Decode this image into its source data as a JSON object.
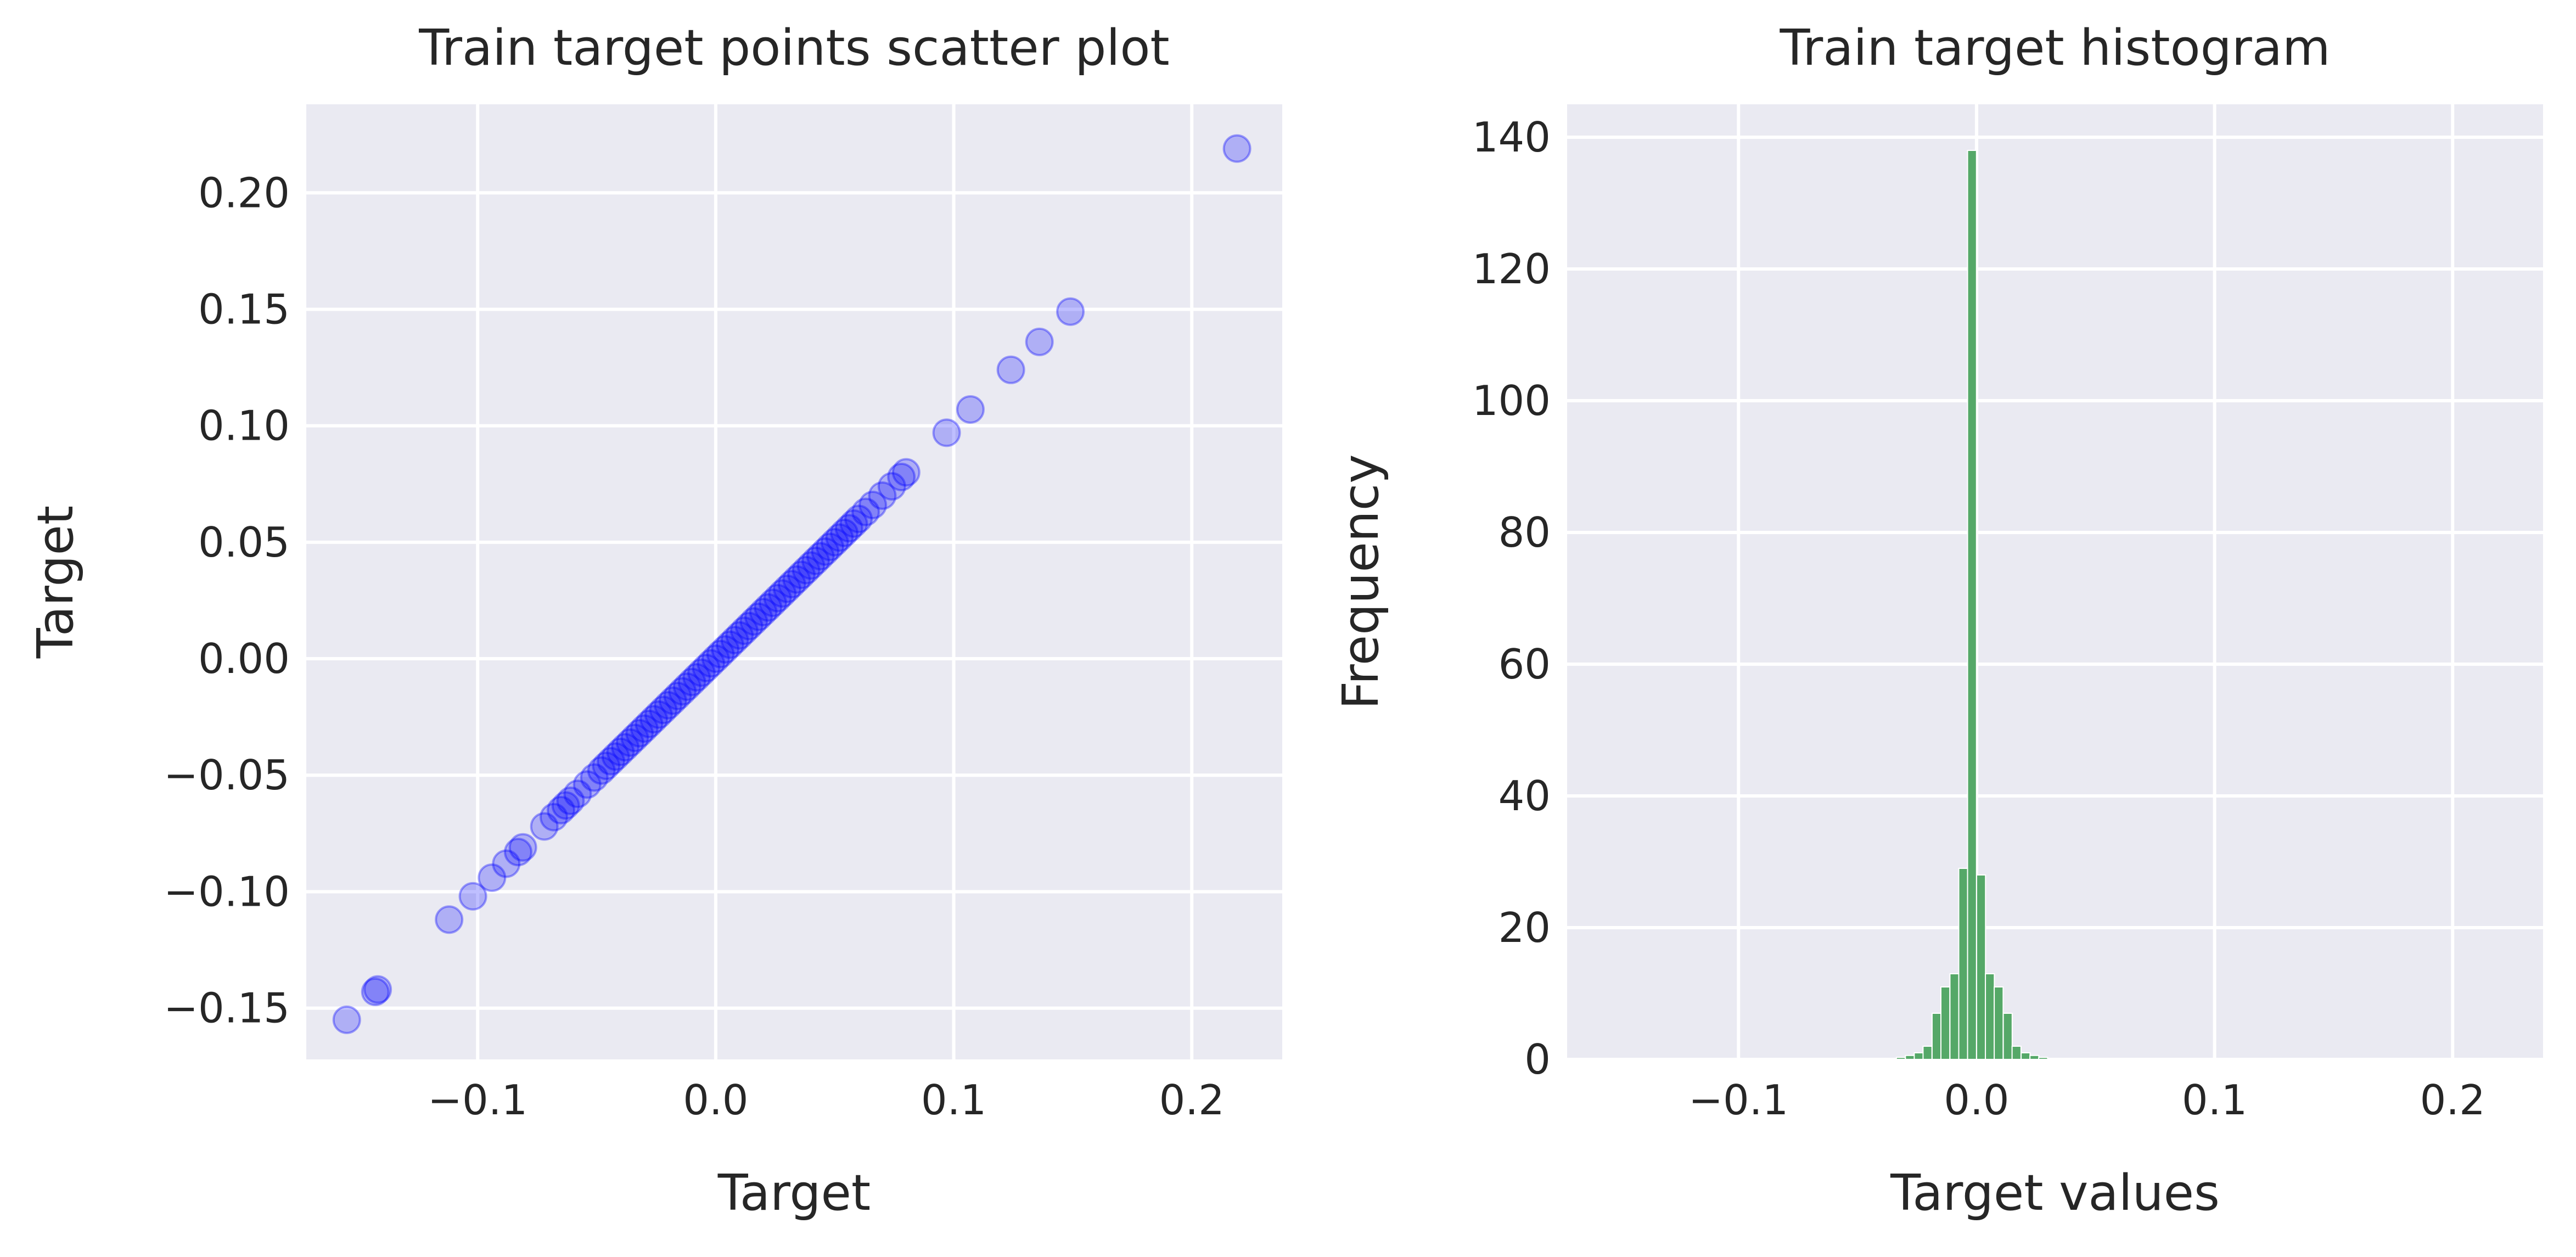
{
  "chart_data": [
    {
      "type": "scatter",
      "title": "Train target points scatter plot",
      "xlabel": "Target",
      "ylabel": "Target",
      "xlim": [
        -0.172,
        0.238
      ],
      "ylim": [
        -0.172,
        0.238
      ],
      "xticks": [
        -0.1,
        0.0,
        0.1,
        0.2
      ],
      "xtick_labels": [
        "−0.1",
        "0.0",
        "0.1",
        "0.2"
      ],
      "yticks": [
        -0.15,
        -0.1,
        -0.05,
        0.0,
        0.05,
        0.1,
        0.15,
        0.2
      ],
      "ytick_labels": [
        "−0.15",
        "−0.10",
        "−0.05",
        "0.00",
        "0.05",
        "0.10",
        "0.15",
        "0.20"
      ],
      "grid": true,
      "point_color": "#0000ff",
      "point_alpha": 0.25,
      "x": [
        -0.155,
        -0.143,
        -0.142,
        -0.112,
        -0.102,
        -0.094,
        -0.088,
        -0.083,
        -0.081,
        -0.072,
        -0.068,
        -0.065,
        -0.063,
        -0.061,
        -0.058,
        -0.054,
        -0.051,
        -0.048,
        -0.046,
        -0.044,
        -0.042,
        -0.04,
        -0.038,
        -0.036,
        -0.034,
        -0.032,
        -0.03,
        -0.028,
        -0.026,
        -0.024,
        -0.022,
        -0.02,
        -0.018,
        -0.016,
        -0.014,
        -0.012,
        -0.01,
        -0.008,
        -0.006,
        -0.004,
        -0.002,
        0.0,
        0.002,
        0.004,
        0.006,
        0.008,
        0.01,
        0.012,
        0.014,
        0.016,
        0.018,
        0.02,
        0.022,
        0.024,
        0.026,
        0.028,
        0.03,
        0.032,
        0.034,
        0.036,
        0.038,
        0.04,
        0.042,
        0.044,
        0.046,
        0.048,
        0.05,
        0.052,
        0.054,
        0.056,
        0.058,
        0.06,
        0.063,
        0.066,
        0.07,
        0.074,
        0.078,
        0.08,
        0.097,
        0.107,
        0.124,
        0.136,
        0.149,
        0.219
      ],
      "y": [
        -0.155,
        -0.143,
        -0.142,
        -0.112,
        -0.102,
        -0.094,
        -0.088,
        -0.083,
        -0.081,
        -0.072,
        -0.068,
        -0.065,
        -0.063,
        -0.061,
        -0.058,
        -0.054,
        -0.051,
        -0.048,
        -0.046,
        -0.044,
        -0.042,
        -0.04,
        -0.038,
        -0.036,
        -0.034,
        -0.032,
        -0.03,
        -0.028,
        -0.026,
        -0.024,
        -0.022,
        -0.02,
        -0.018,
        -0.016,
        -0.014,
        -0.012,
        -0.01,
        -0.008,
        -0.006,
        -0.004,
        -0.002,
        0.0,
        0.002,
        0.004,
        0.006,
        0.008,
        0.01,
        0.012,
        0.014,
        0.016,
        0.018,
        0.02,
        0.022,
        0.024,
        0.026,
        0.028,
        0.03,
        0.032,
        0.034,
        0.036,
        0.038,
        0.04,
        0.042,
        0.044,
        0.046,
        0.048,
        0.05,
        0.052,
        0.054,
        0.056,
        0.058,
        0.06,
        0.063,
        0.066,
        0.07,
        0.074,
        0.078,
        0.08,
        0.097,
        0.107,
        0.124,
        0.136,
        0.149,
        0.219
      ]
    },
    {
      "type": "bar",
      "title": "Train target histogram",
      "xlabel": "Target values",
      "ylabel": "Frequency",
      "xlim": [
        -0.172,
        0.238
      ],
      "ylim": [
        0,
        145
      ],
      "xticks": [
        -0.1,
        0.0,
        0.1,
        0.2
      ],
      "xtick_labels": [
        "−0.1",
        "0.0",
        "0.1",
        "0.2"
      ],
      "yticks": [
        0,
        20,
        40,
        60,
        80,
        100,
        120,
        140
      ],
      "ytick_labels": [
        "0",
        "20",
        "40",
        "60",
        "80",
        "100",
        "120",
        "140"
      ],
      "grid": true,
      "bar_color": "#55a868",
      "bin_width": 0.00374,
      "bin_centers": [
        -0.0318,
        -0.028,
        -0.0243,
        -0.0206,
        -0.0168,
        -0.0131,
        -0.0093,
        -0.0056,
        -0.0019,
        0.0019,
        0.0056,
        0.0093,
        0.0131,
        0.0168,
        0.0206,
        0.0243,
        0.028
      ],
      "values": [
        0.3,
        0.6,
        1,
        2,
        7,
        11,
        13,
        29,
        138,
        28,
        13,
        11,
        7,
        2,
        1,
        0.6,
        0.3
      ]
    }
  ]
}
